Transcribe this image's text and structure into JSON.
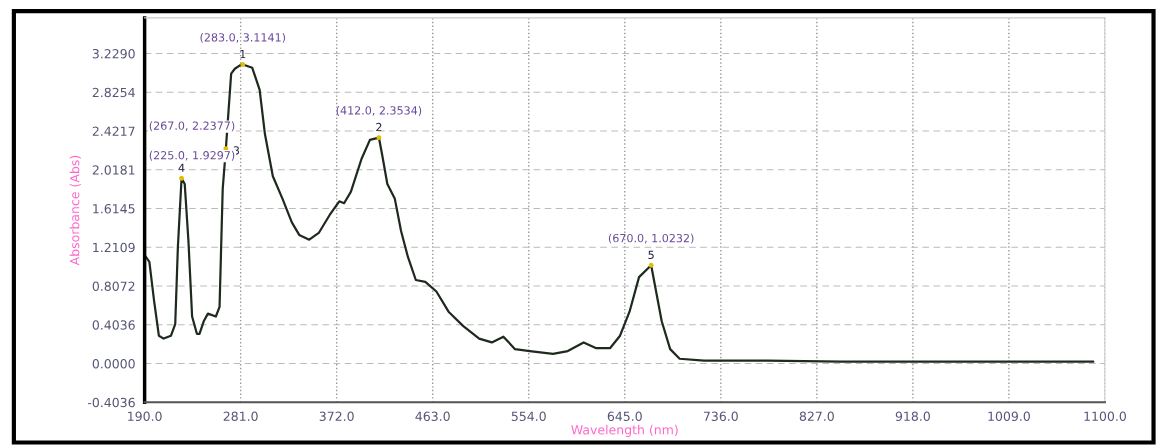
{
  "chart_data": {
    "type": "line",
    "xlabel": "Wavelength (nm)",
    "ylabel": "Absorbance (Abs)",
    "x": [
      190,
      194.5,
      199,
      203.5,
      208,
      215,
      219,
      221.5,
      225,
      228,
      231.5,
      235,
      239.5,
      242,
      246,
      250,
      257.5,
      261,
      264,
      267,
      272,
      275.5,
      281,
      283,
      292,
      299,
      304,
      311.5,
      320.5,
      329.5,
      336.5,
      346,
      355,
      365.5,
      374.5,
      379,
      385.5,
      395.5,
      403.5,
      412,
      415,
      420,
      427,
      433,
      439.5,
      447,
      456,
      466.5,
      478,
      492,
      507,
      519,
      530,
      541,
      555,
      577,
      591,
      606,
      618,
      631,
      640.5,
      649.5,
      658.5,
      670,
      680,
      688,
      697,
      720,
      780,
      850,
      920,
      1000,
      1089
    ],
    "series": [
      {
        "color": "#1f2a1f",
        "values": [
          1.13,
          1.06,
          0.65,
          0.29,
          0.26,
          0.29,
          0.41,
          1.21,
          1.9297,
          1.87,
          1.28,
          0.49,
          0.31,
          0.31,
          0.44,
          0.52,
          0.49,
          0.59,
          1.82,
          2.2377,
          3.02,
          3.07,
          3.11,
          3.1141,
          3.08,
          2.85,
          2.39,
          1.95,
          1.72,
          1.47,
          1.34,
          1.29,
          1.36,
          1.55,
          1.69,
          1.67,
          1.79,
          2.13,
          2.33,
          2.3534,
          2.18,
          1.87,
          1.72,
          1.38,
          1.11,
          0.87,
          0.85,
          0.75,
          0.54,
          0.39,
          0.26,
          0.22,
          0.28,
          0.15,
          0.13,
          0.1,
          0.13,
          0.22,
          0.16,
          0.16,
          0.29,
          0.54,
          0.9,
          1.0232,
          0.44,
          0.15,
          0.05,
          0.03,
          0.03,
          0.02,
          0.02,
          0.02,
          0.02
        ]
      }
    ],
    "annotations": [
      {
        "text": "1",
        "x": 283,
        "y": 3.1141
      },
      {
        "text": "(283.0, 3.1141)",
        "x": 283,
        "y": 3.1141
      },
      {
        "text": "2",
        "x": 412,
        "y": 2.3534
      },
      {
        "text": "(412.0, 2.3534)",
        "x": 412,
        "y": 2.3534
      },
      {
        "text": "3",
        "x": 267,
        "y": 2.2377
      },
      {
        "text": "(267.0, 2.2377)",
        "x": 267,
        "y": 2.2377
      },
      {
        "text": "4",
        "x": 225,
        "y": 1.9297
      },
      {
        "text": "(225.0, 1.9297)",
        "x": 225,
        "y": 1.9297
      },
      {
        "text": "5",
        "x": 670,
        "y": 1.0232
      },
      {
        "text": "(670.0, 1.0232)",
        "x": 670,
        "y": 1.0232
      }
    ],
    "xlim": [
      190,
      1100
    ],
    "ylim": [
      -0.4036,
      3.6
    ],
    "xticks": [
      {
        "value": 190,
        "label": "190.0"
      },
      {
        "value": 281,
        "label": "281.0"
      },
      {
        "value": 372,
        "label": "372.0"
      },
      {
        "value": 463,
        "label": "463.0"
      },
      {
        "value": 554,
        "label": "554.0"
      },
      {
        "value": 645,
        "label": "645.0"
      },
      {
        "value": 736,
        "label": "736.0"
      },
      {
        "value": 827,
        "label": "827.0"
      },
      {
        "value": 918,
        "label": "918.0"
      },
      {
        "value": 1009,
        "label": "1009.0"
      },
      {
        "value": 1100,
        "label": "1100.0"
      }
    ],
    "yticks": [
      {
        "value": -0.4036,
        "label": "-0.4036"
      },
      {
        "value": 0,
        "label": "0.0000"
      },
      {
        "value": 0.4036,
        "label": "0.4036"
      },
      {
        "value": 0.8072,
        "label": "0.8072"
      },
      {
        "value": 1.2109,
        "label": "1.2109"
      },
      {
        "value": 1.6145,
        "label": "1.6145"
      },
      {
        "value": 2.0181,
        "label": "2.0181"
      },
      {
        "value": 2.4217,
        "label": "2.4217"
      },
      {
        "value": 2.8254,
        "label": "2.8254"
      },
      {
        "value": 3.229,
        "label": "3.2290"
      }
    ],
    "grid": true,
    "marker": "none",
    "line_style": "solid"
  }
}
